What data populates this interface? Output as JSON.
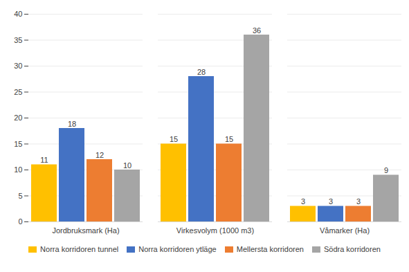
{
  "chart_data": {
    "type": "bar",
    "categories": [
      "Jordbruksmark (Ha)",
      "Virkesvolym (1000 m3)",
      "Våmarker (Ha)"
    ],
    "series": [
      {
        "name": "Norra korridoren tunnel",
        "color": "#FFC000",
        "values": [
          11,
          15,
          3
        ]
      },
      {
        "name": "Norra korridoren ytläge",
        "color": "#4472C4",
        "values": [
          18,
          28,
          3
        ]
      },
      {
        "name": "Mellersta korridoren",
        "color": "#ED7D31",
        "values": [
          12,
          15,
          3
        ]
      },
      {
        "name": "Södra korridoren",
        "color": "#A5A5A5",
        "values": [
          10,
          36,
          9
        ]
      }
    ],
    "ylim": [
      0,
      40
    ],
    "yticks": [
      0,
      5,
      10,
      15,
      20,
      25,
      30,
      35,
      40
    ],
    "grid": true,
    "data_labels": true,
    "legend": "bottom"
  }
}
